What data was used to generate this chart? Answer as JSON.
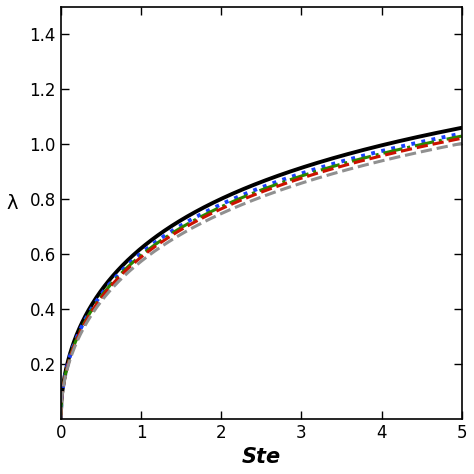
{
  "xlabel": "Ste",
  "ylabel": "λ",
  "xlim": [
    0,
    5
  ],
  "ylim": [
    0,
    1.5
  ],
  "xticks": [
    0,
    1,
    2,
    3,
    4,
    5
  ],
  "yticks": [
    0.2,
    0.4,
    0.6,
    0.8,
    1.0,
    1.2,
    1.4
  ],
  "curves": [
    {
      "color": "#000000",
      "linestyle": "solid",
      "linewidth": 2.8,
      "Ste_scale": 1.0
    },
    {
      "color": "#1a3fff",
      "linestyle": "dotted",
      "linewidth": 2.8,
      "Ste_scale": 0.93
    },
    {
      "color": "#2a8800",
      "linestyle": "dashdot",
      "linewidth": 2.2,
      "Ste_scale": 0.9
    },
    {
      "color": "#cc1100",
      "linestyle": "dashed",
      "linewidth": 2.2,
      "Ste_scale": 0.875
    },
    {
      "color": "#909090",
      "linestyle": "dashed",
      "linewidth": 2.2,
      "Ste_scale": 0.82
    }
  ],
  "background_color": "#ffffff",
  "spine_color": "#000000",
  "tick_labelsize": 12,
  "xlabel_fontsize": 15,
  "ylabel_fontsize": 14
}
